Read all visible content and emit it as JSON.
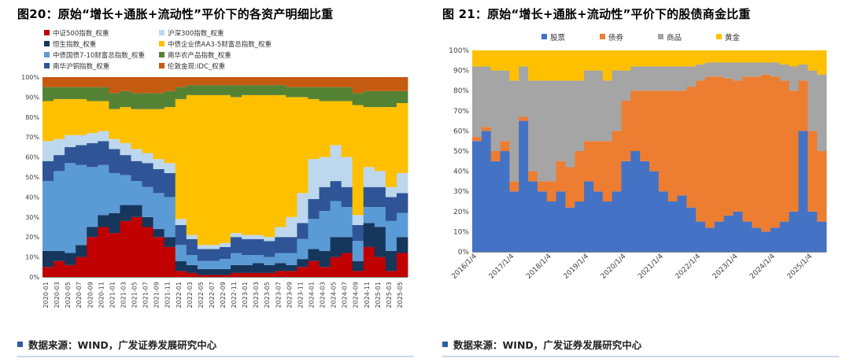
{
  "sources": [
    "数据来源：WIND，广发证券发展研究中心",
    "数据来源：WIND，广发证券发展研究中心"
  ],
  "accent_color": "#2e5b9f",
  "chart_data": [
    {
      "type": "area",
      "stack": "percent",
      "title": "图20：原始“增长+通胀+流动性”平价下的各资产明细比重",
      "xlabel": "",
      "ylabel": "",
      "ylim": [
        0,
        100
      ],
      "grid": false,
      "legend_position": "top",
      "y_tick_labels": [
        "0%",
        "10%",
        "20%",
        "30%",
        "40%",
        "50%",
        "60%",
        "70%",
        "80%",
        "90%",
        "100%"
      ],
      "categories": [
        "2020-01",
        "2020-03",
        "2020-05",
        "2020-07",
        "2020-09",
        "2020-11",
        "2021-01",
        "2021-03",
        "2021-05",
        "2021-07",
        "2021-09",
        "2021-11",
        "2022-01",
        "2022-03",
        "2022-05",
        "2022-07",
        "2022-09",
        "2022-11",
        "2023-01",
        "2023-03",
        "2023-05",
        "2023-07",
        "2023-09",
        "2023-11",
        "2024-01",
        "2024-03",
        "2024-05",
        "2024-07",
        "2024-09",
        "2024-11",
        "2025-01",
        "2025-03",
        "2025-05"
      ],
      "series": [
        {
          "name": "中证500指数_权重",
          "color": "#C00000",
          "values": [
            5,
            8,
            6,
            10,
            20,
            25,
            22,
            28,
            30,
            25,
            20,
            15,
            3,
            2,
            1,
            1,
            1,
            2,
            2,
            2,
            2,
            3,
            3,
            5,
            8,
            5,
            10,
            12,
            3,
            15,
            10,
            3,
            12
          ]
        },
        {
          "name": "恒生指数_权重",
          "color": "#16365C",
          "values": [
            8,
            5,
            6,
            6,
            5,
            6,
            10,
            8,
            6,
            5,
            4,
            5,
            5,
            4,
            3,
            3,
            3,
            4,
            4,
            5,
            4,
            4,
            3,
            4,
            6,
            8,
            10,
            8,
            5,
            12,
            15,
            10,
            8
          ]
        },
        {
          "name": "中债国债7-10财富总指数_权重",
          "color": "#5B9BD5",
          "values": [
            35,
            40,
            45,
            40,
            30,
            25,
            20,
            15,
            12,
            15,
            18,
            20,
            8,
            5,
            4,
            4,
            5,
            6,
            5,
            4,
            4,
            5,
            6,
            10,
            15,
            20,
            18,
            15,
            10,
            8,
            10,
            15,
            12
          ]
        },
        {
          "name": "南华沪铜指数_权重",
          "color": "#2F5597",
          "values": [
            10,
            8,
            8,
            10,
            12,
            12,
            12,
            10,
            10,
            12,
            12,
            12,
            10,
            8,
            6,
            6,
            6,
            8,
            8,
            8,
            8,
            8,
            8,
            8,
            10,
            12,
            10,
            10,
            8,
            10,
            10,
            12,
            10
          ]
        },
        {
          "name": "沪深300指数_权重",
          "color": "#BDD7EE",
          "values": [
            10,
            8,
            6,
            5,
            5,
            5,
            5,
            6,
            6,
            5,
            5,
            5,
            3,
            2,
            2,
            2,
            2,
            2,
            2,
            2,
            2,
            5,
            10,
            15,
            20,
            15,
            18,
            15,
            5,
            10,
            8,
            5,
            10
          ]
        },
        {
          "name": "中债企业债AA3-5财富总指数_权重",
          "color": "#FFC000",
          "values": [
            20,
            20,
            18,
            18,
            16,
            15,
            15,
            18,
            20,
            22,
            25,
            28,
            60,
            70,
            75,
            75,
            74,
            68,
            70,
            70,
            71,
            66,
            60,
            48,
            30,
            28,
            22,
            28,
            55,
            30,
            32,
            40,
            35
          ]
        },
        {
          "name": "南华农产品指数_权重",
          "color": "#548235",
          "values": [
            7,
            6,
            6,
            6,
            7,
            7,
            8,
            8,
            8,
            8,
            8,
            8,
            6,
            5,
            5,
            5,
            5,
            6,
            5,
            5,
            5,
            5,
            5,
            5,
            6,
            7,
            7,
            7,
            6,
            8,
            8,
            8,
            6
          ]
        },
        {
          "name": "伦敦金现:IDC_权重",
          "color": "#C55A11",
          "values": [
            5,
            5,
            5,
            5,
            5,
            5,
            8,
            7,
            8,
            8,
            8,
            7,
            5,
            4,
            4,
            4,
            4,
            4,
            4,
            4,
            4,
            4,
            5,
            5,
            5,
            5,
            5,
            5,
            8,
            7,
            7,
            7,
            7
          ]
        }
      ]
    },
    {
      "type": "area",
      "stack": "percent",
      "title": "图 21：原始“增长+通胀+流动性”平价下的股债商金比重",
      "xlabel": "",
      "ylabel": "",
      "ylim": [
        0,
        100
      ],
      "grid": false,
      "legend_position": "top",
      "y_tick_labels": [
        "0%",
        "10%",
        "20%",
        "30%",
        "40%",
        "50%",
        "60%",
        "70%",
        "80%",
        "90%",
        "100%"
      ],
      "categories": [
        "2016Q1",
        "2016Q2",
        "2016Q3",
        "2016Q4",
        "2017Q1",
        "2017Q2",
        "2017Q3",
        "2017Q4",
        "2018Q1",
        "2018Q2",
        "2018Q3",
        "2018Q4",
        "2019Q1",
        "2019Q2",
        "2019Q3",
        "2019Q4",
        "2020Q1",
        "2020Q2",
        "2020Q3",
        "2020Q4",
        "2021Q1",
        "2021Q2",
        "2021Q3",
        "2021Q4",
        "2022Q1",
        "2022Q2",
        "2022Q3",
        "2022Q4",
        "2023Q1",
        "2023Q2",
        "2023Q3",
        "2023Q4",
        "2024Q1",
        "2024Q2",
        "2024Q3",
        "2024Q4",
        "2025Q1",
        "2025Q2"
      ],
      "x_ticks": [
        {
          "i": 0,
          "label": "2016/1/4"
        },
        {
          "i": 4,
          "label": "2017/1/4"
        },
        {
          "i": 8,
          "label": "2018/1/4"
        },
        {
          "i": 12,
          "label": "2019/1/4"
        },
        {
          "i": 16,
          "label": "2020/1/4"
        },
        {
          "i": 20,
          "label": "2021/1/4"
        },
        {
          "i": 24,
          "label": "2022/1/4"
        },
        {
          "i": 28,
          "label": "2023/1/4"
        },
        {
          "i": 32,
          "label": "2024/1/4"
        },
        {
          "i": 36,
          "label": "2025/1/4"
        }
      ],
      "series": [
        {
          "name": "股票",
          "color": "#4472C4",
          "values": [
            55,
            60,
            45,
            50,
            30,
            65,
            35,
            30,
            25,
            30,
            22,
            25,
            35,
            30,
            25,
            30,
            45,
            50,
            45,
            40,
            30,
            25,
            28,
            22,
            15,
            12,
            15,
            18,
            20,
            15,
            12,
            10,
            12,
            15,
            20,
            60,
            20,
            15
          ]
        },
        {
          "name": "债券",
          "color": "#ED7D31",
          "values": [
            2,
            2,
            5,
            5,
            5,
            2,
            5,
            5,
            10,
            15,
            20,
            25,
            20,
            25,
            30,
            30,
            30,
            30,
            35,
            40,
            50,
            55,
            52,
            60,
            70,
            75,
            72,
            68,
            65,
            72,
            75,
            78,
            75,
            70,
            60,
            25,
            40,
            35
          ]
        },
        {
          "name": "商品",
          "color": "#A5A5A5",
          "values": [
            35,
            30,
            40,
            35,
            50,
            25,
            45,
            50,
            50,
            40,
            43,
            35,
            35,
            35,
            30,
            30,
            15,
            12,
            12,
            12,
            12,
            12,
            12,
            10,
            8,
            7,
            7,
            8,
            9,
            7,
            7,
            6,
            7,
            8,
            12,
            8,
            30,
            38
          ]
        },
        {
          "name": "黄金",
          "color": "#FFC000",
          "values": [
            8,
            8,
            10,
            10,
            15,
            8,
            15,
            15,
            15,
            15,
            15,
            15,
            10,
            10,
            15,
            10,
            10,
            8,
            8,
            8,
            8,
            8,
            8,
            8,
            7,
            6,
            6,
            6,
            6,
            6,
            6,
            6,
            6,
            7,
            8,
            7,
            10,
            12
          ]
        }
      ]
    }
  ]
}
